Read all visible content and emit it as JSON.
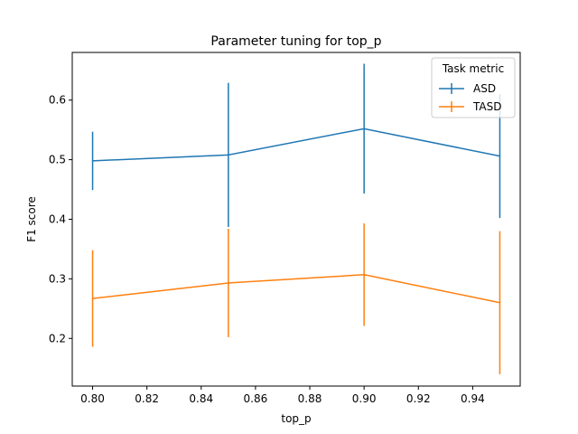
{
  "chart_data": {
    "type": "line",
    "title": "Parameter tuning for top_p",
    "xlabel": "top_p",
    "ylabel": "F1 score",
    "xlim": [
      0.7925,
      0.9575
    ],
    "ylim": [
      0.12,
      0.68
    ],
    "xticks": [
      "0.80",
      "0.82",
      "0.84",
      "0.86",
      "0.88",
      "0.90",
      "0.92",
      "0.94"
    ],
    "xtick_values": [
      0.8,
      0.82,
      0.84,
      0.86,
      0.88,
      0.9,
      0.92,
      0.94
    ],
    "yticks": [
      "0.2",
      "0.3",
      "0.4",
      "0.5",
      "0.6"
    ],
    "ytick_values": [
      0.2,
      0.3,
      0.4,
      0.5,
      0.6
    ],
    "x": [
      0.8,
      0.85,
      0.9,
      0.95
    ],
    "grid": false,
    "legend": {
      "title": "Task metric",
      "placement": "top-right"
    },
    "series": [
      {
        "name": "ASD",
        "color": "#1f77b4",
        "values": [
          0.498,
          0.508,
          0.552,
          0.506
        ],
        "errors": [
          0.049,
          0.121,
          0.109,
          0.104
        ]
      },
      {
        "name": "TASD",
        "color": "#ff7f0e",
        "values": [
          0.267,
          0.293,
          0.307,
          0.26
        ],
        "errors": [
          0.081,
          0.091,
          0.086,
          0.12
        ]
      }
    ]
  }
}
